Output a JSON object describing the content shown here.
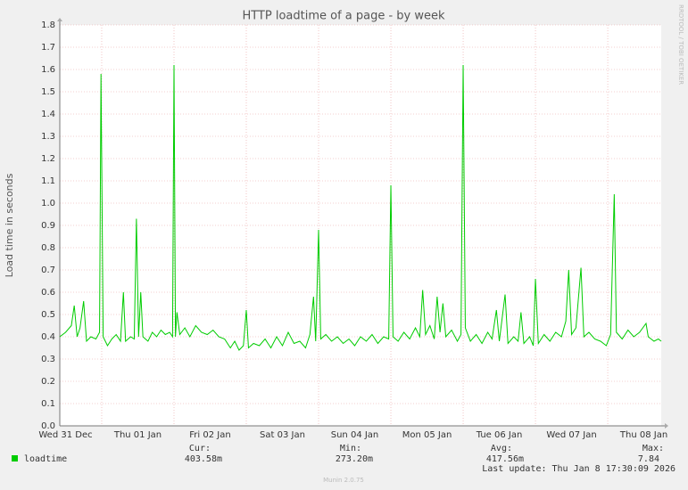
{
  "chart_data": {
    "type": "line",
    "title": "HTTP loadtime of a page - by week",
    "y_label": "Load time in seconds",
    "side_text": "RRDTOOL / TOBI OETIKER",
    "xlim": [
      -0.58,
      7.74
    ],
    "xticks": [
      {
        "value": -1,
        "label": "Wed 31 Dec"
      },
      {
        "value": 0,
        "label": "Thu 01 Jan"
      },
      {
        "value": 1,
        "label": "Fri 02 Jan"
      },
      {
        "value": 2,
        "label": "Sat 03 Jan"
      },
      {
        "value": 3,
        "label": "Sun 04 Jan"
      },
      {
        "value": 4,
        "label": "Mon 05 Jan"
      },
      {
        "value": 5,
        "label": "Tue 06 Jan"
      },
      {
        "value": 6,
        "label": "Wed 07 Jan"
      },
      {
        "value": 7,
        "label": "Thu 08 Jan"
      }
    ],
    "ylim": [
      0,
      1.8
    ],
    "yticks": [
      {
        "value": 0,
        "label": "0.0"
      },
      0.1,
      0.2,
      0.3,
      0.4,
      0.5,
      0.6,
      0.7,
      0.8,
      0.9,
      {
        "value": 1,
        "label": "1.0"
      },
      1.1,
      1.2,
      1.3,
      1.4,
      1.5,
      1.6,
      1.7,
      1.8
    ],
    "grid": true,
    "x": [
      -0.58,
      -0.5,
      -0.42,
      -0.38,
      -0.34,
      -0.3,
      -0.25,
      -0.21,
      -0.15,
      -0.08,
      -0.03,
      -0.01,
      0.02,
      0.08,
      0.14,
      0.2,
      0.26,
      0.3,
      0.33,
      0.4,
      0.45,
      0.48,
      0.51,
      0.54,
      0.57,
      0.64,
      0.7,
      0.76,
      0.82,
      0.88,
      0.94,
      0.98,
      1.0,
      1.02,
      1.04,
      1.08,
      1.15,
      1.22,
      1.3,
      1.38,
      1.46,
      1.54,
      1.62,
      1.7,
      1.78,
      1.84,
      1.9,
      1.96,
      2.0,
      2.03,
      2.1,
      2.18,
      2.26,
      2.34,
      2.42,
      2.5,
      2.58,
      2.66,
      2.74,
      2.82,
      2.88,
      2.93,
      2.96,
      3.0,
      3.03,
      3.1,
      3.18,
      3.26,
      3.34,
      3.42,
      3.5,
      3.58,
      3.66,
      3.74,
      3.82,
      3.9,
      3.97,
      4.0,
      4.03,
      4.1,
      4.18,
      4.26,
      4.34,
      4.4,
      4.44,
      4.48,
      4.54,
      4.6,
      4.64,
      4.68,
      4.72,
      4.76,
      4.84,
      4.92,
      4.97,
      5.0,
      5.03,
      5.1,
      5.18,
      5.26,
      5.34,
      5.4,
      5.46,
      5.5,
      5.58,
      5.62,
      5.7,
      5.76,
      5.8,
      5.84,
      5.92,
      5.97,
      6.0,
      6.04,
      6.12,
      6.2,
      6.28,
      6.36,
      6.42,
      6.46,
      6.5,
      6.56,
      6.63,
      6.67,
      6.74,
      6.82,
      6.9,
      6.98,
      7.04,
      7.09,
      7.12,
      7.2,
      7.28,
      7.36,
      7.44,
      7.53,
      7.56,
      7.64,
      7.7,
      7.74
    ],
    "series": [
      {
        "name": "loadtime",
        "color": "#00cc00",
        "values": [
          0.4,
          0.42,
          0.45,
          0.54,
          0.4,
          0.44,
          0.56,
          0.38,
          0.4,
          0.39,
          0.42,
          1.58,
          0.4,
          0.36,
          0.39,
          0.41,
          0.38,
          0.6,
          0.38,
          0.4,
          0.39,
          0.93,
          0.4,
          0.6,
          0.4,
          0.38,
          0.42,
          0.4,
          0.43,
          0.41,
          0.42,
          0.4,
          1.62,
          0.4,
          0.51,
          0.41,
          0.44,
          0.4,
          0.45,
          0.42,
          0.41,
          0.43,
          0.4,
          0.39,
          0.35,
          0.38,
          0.34,
          0.36,
          0.52,
          0.35,
          0.37,
          0.36,
          0.39,
          0.35,
          0.4,
          0.36,
          0.42,
          0.37,
          0.38,
          0.35,
          0.41,
          0.58,
          0.38,
          0.88,
          0.39,
          0.41,
          0.38,
          0.4,
          0.37,
          0.39,
          0.36,
          0.4,
          0.38,
          0.41,
          0.37,
          0.4,
          0.39,
          1.08,
          0.4,
          0.38,
          0.42,
          0.39,
          0.44,
          0.4,
          0.61,
          0.41,
          0.45,
          0.39,
          0.58,
          0.42,
          0.55,
          0.4,
          0.43,
          0.38,
          0.41,
          1.62,
          0.44,
          0.38,
          0.41,
          0.37,
          0.42,
          0.39,
          0.52,
          0.38,
          0.59,
          0.37,
          0.4,
          0.38,
          0.51,
          0.37,
          0.4,
          0.36,
          0.66,
          0.37,
          0.41,
          0.38,
          0.42,
          0.4,
          0.47,
          0.7,
          0.41,
          0.44,
          0.71,
          0.4,
          0.42,
          0.39,
          0.38,
          0.36,
          0.41,
          1.04,
          0.42,
          0.39,
          0.43,
          0.4,
          0.42,
          0.46,
          0.4,
          0.38,
          0.39,
          0.38
        ]
      }
    ],
    "stats": [
      {
        "label": "Cur:",
        "value": "403.58m"
      },
      {
        "label": "Min:",
        "value": "273.20m"
      },
      {
        "label": "Avg:",
        "value": "417.56m"
      },
      {
        "label": "Max:",
        "value": "7.84"
      }
    ],
    "last_update": "Last update: Thu Jan  8 17:30:09 2026",
    "footer": "Munin 2.0.75"
  }
}
